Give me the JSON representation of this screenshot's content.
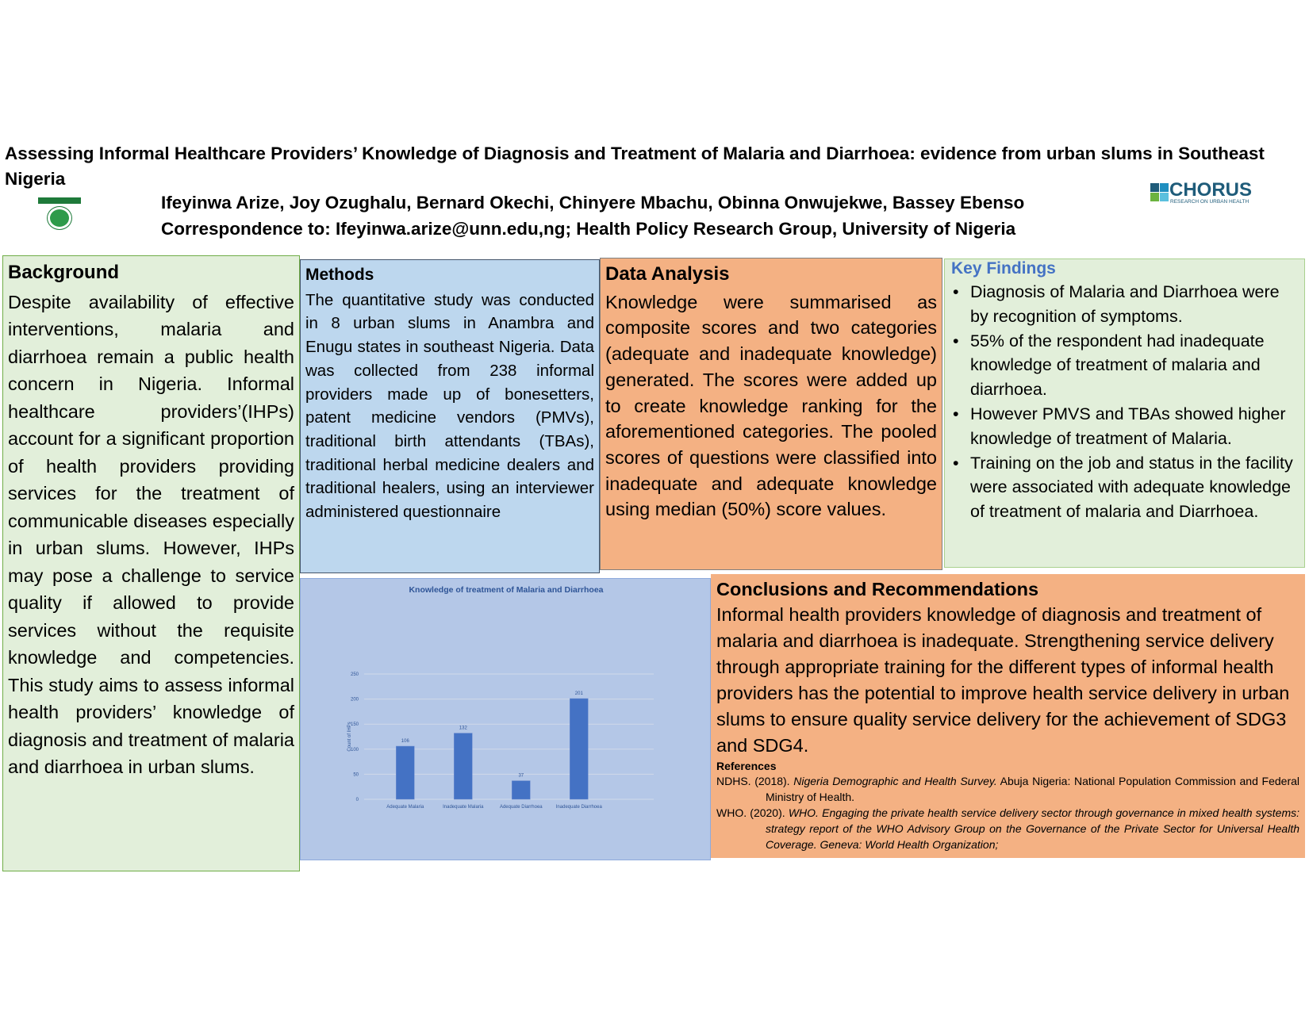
{
  "title": "Assessing Informal Healthcare Providers’ Knowledge of Diagnosis and Treatment of Malaria and Diarrhoea: evidence from urban slums in Southeast Nigeria",
  "authors": "Ifeyinwa Arize, Joy Ozughalu, Bernard Okechi, Chinyere Mbachu, Obinna Onwujekwe, Bassey Ebenso",
  "correspondence": "Correspondence to: Ifeyinwa.arize@unn.edu,ng; Health Policy Research Group, University of Nigeria",
  "logos": {
    "left": "University of Nigeria",
    "right": "CHORUS",
    "right_sub": "RESEARCH ON URBAN HEALTH"
  },
  "background": {
    "heading": "Background",
    "text": "Despite availability of effective interventions, malaria and diarrhoea remain a public health concern in Nigeria. Informal healthcare providers’(IHPs) account for a significant proportion of health providers providing services for the treatment of communicable diseases especially in urban slums. However, IHPs may pose a challenge to service quality if allowed to provide services without the requisite knowledge and competencies. This study aims to assess informal health providers’ knowledge of diagnosis and treatment of malaria and diarrhoea in urban slums."
  },
  "methods": {
    "heading": "Methods",
    "text": "The quantitative study was conducted in 8 urban slums in Anambra and Enugu states in southeast Nigeria. Data was collected from 238 informal providers made up of bonesetters, patent medicine vendors (PMVs), traditional birth attendants (TBAs), traditional herbal medicine dealers and traditional healers, using an interviewer administered questionnaire"
  },
  "data_analysis": {
    "heading": "Data Analysis",
    "text": "Knowledge were summarised as composite scores and two categories (adequate and inadequate knowledge) generated. The scores were added up to create knowledge ranking for the aforementioned categories. The pooled scores of questions were classified into inadequate and adequate knowledge using median (50%) score values."
  },
  "key_findings": {
    "heading": "Key Findings",
    "items": [
      "Diagnosis of Malaria and Diarrhoea were by recognition of symptoms.",
      "55% of the respondent had inadequate knowledge of treatment of malaria and diarrhoea.",
      "However PMVS and TBAs showed higher knowledge of treatment of Malaria.",
      "Training on the job and status in the facility were associated with adequate knowledge of treatment of malaria and Diarrhoea."
    ]
  },
  "conclusions": {
    "heading": "Conclusions and Recommendations",
    "text": "Informal health providers knowledge of diagnosis and treatment of malaria and diarrhoea is inadequate.  Strengthening service delivery through appropriate training for the different types of informal health providers has the potential to improve health service delivery in urban slums  to ensure quality service delivery for the achievement of SDG3 and SDG4.",
    "references_heading": "References",
    "references": [
      {
        "plain": "NDHS. (2018). ",
        "italic": "Nigeria Demographic and Health Survey.",
        "rest": " Abuja Nigeria: National Population Commission and Federal Ministry of Health."
      },
      {
        "plain": "WHO. (2020). ",
        "italic": "WHO. Engaging the private health service delivery sector through governance in mixed health systems: strategy report of the WHO Advisory Group on the Governance of the Private Sector for Universal Health Coverage. Geneva: World Health Organization;",
        "rest": ""
      }
    ]
  },
  "colors": {
    "green_box": "#e2efda",
    "blue_box": "#bdd7ee",
    "orange_box": "#f4b183",
    "chart_bg": "#b4c7e7",
    "bar": "#4472c4"
  },
  "chart_data": {
    "type": "bar",
    "title": "Knowledge of treatment of Malaria and Diarrhoea",
    "xlabel": "",
    "ylabel": "Count of IHPs",
    "categories": [
      "Adequate Malaria",
      "Inadequate Malaria",
      "Adequate Diarrhoea",
      "Inadequate Diarrhoea"
    ],
    "values": [
      106,
      132,
      37,
      201
    ],
    "ylim": [
      0,
      250
    ],
    "yticks": [
      0,
      50,
      100,
      150,
      200,
      250
    ],
    "grid": true,
    "data_labels": true
  }
}
